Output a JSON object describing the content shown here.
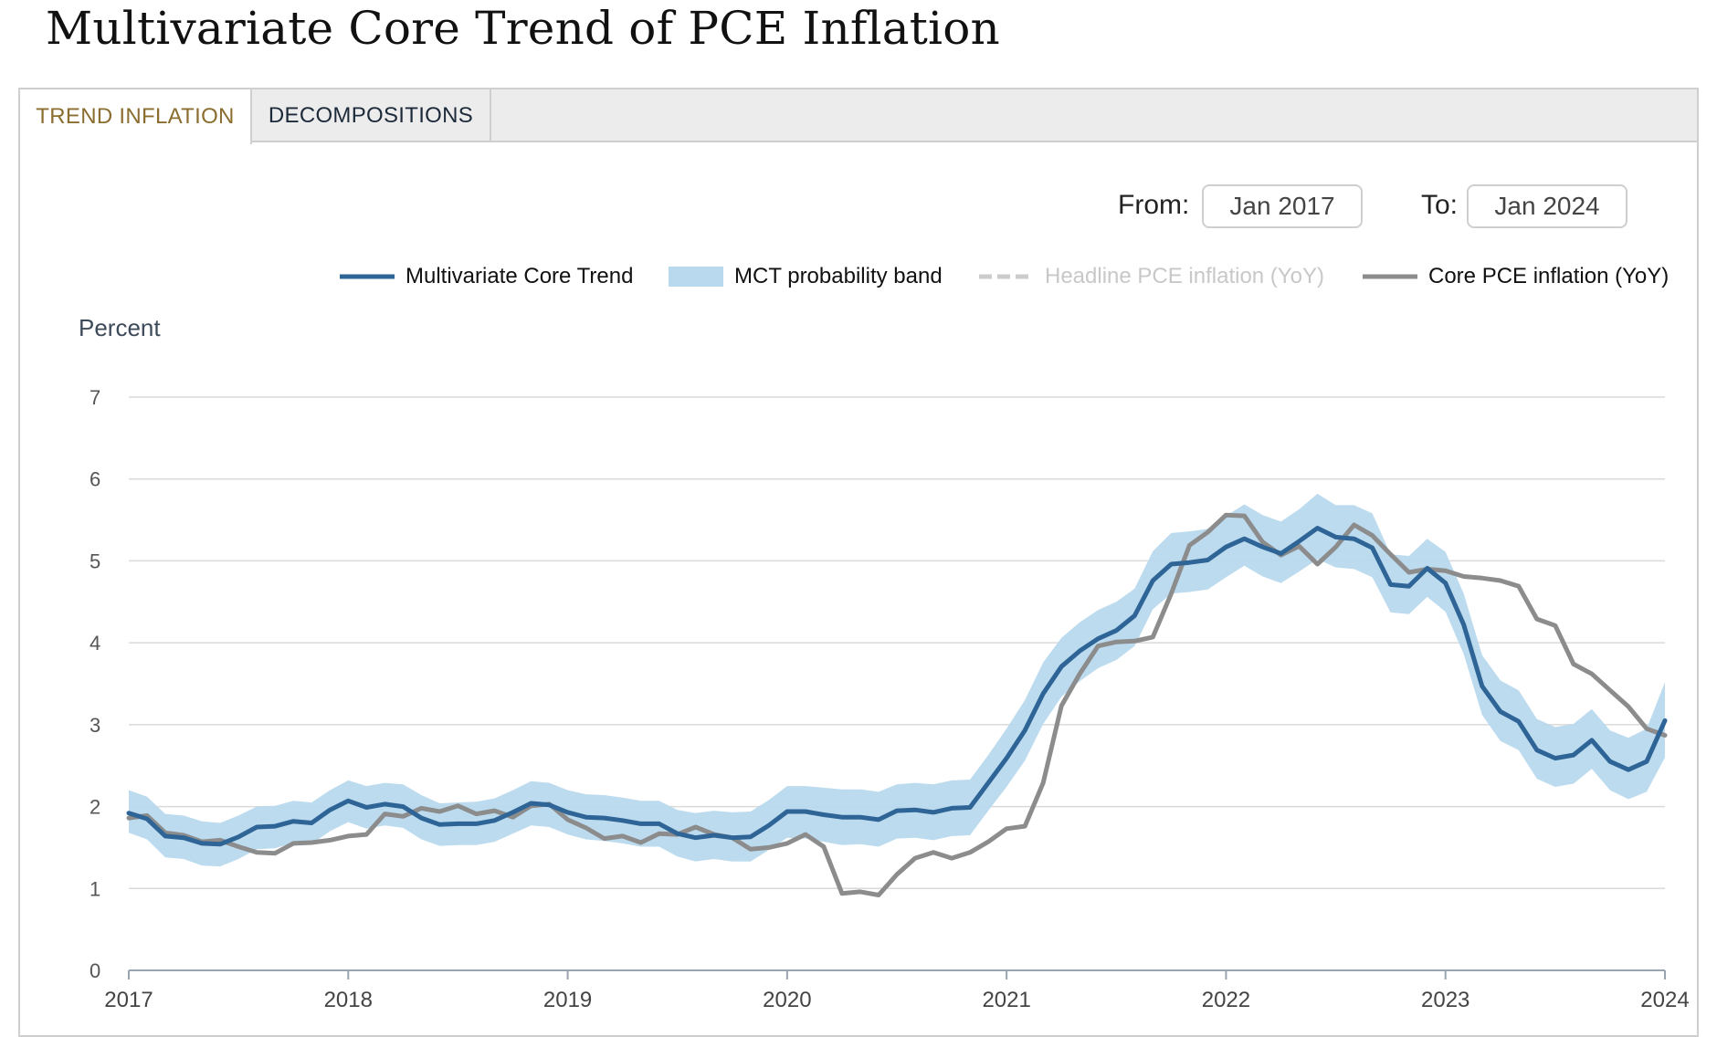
{
  "page": {
    "title": "Multivariate Core Trend of PCE Inflation"
  },
  "tabs": [
    {
      "label": "TREND INFLATION",
      "active": true
    },
    {
      "label": "DECOMPOSITIONS",
      "active": false
    }
  ],
  "range": {
    "from_label": "From:",
    "from_value": "Jan 2017",
    "to_label": "To:",
    "to_value": "Jan 2024"
  },
  "legend": [
    {
      "label": "Multivariate Core Trend",
      "color": "#2e6496",
      "style": "line",
      "enabled": true
    },
    {
      "label": "MCT probability band",
      "color": "#b8d9ee",
      "style": "band",
      "enabled": true
    },
    {
      "label": "Headline PCE inflation (YoY)",
      "color": "#cccccc",
      "style": "dashed",
      "enabled": false
    },
    {
      "label": "Core PCE inflation (YoY)",
      "color": "#8c8c8c",
      "style": "line",
      "enabled": true
    }
  ],
  "chart_data": {
    "type": "line",
    "ylabel": "Percent",
    "ylim": [
      0,
      7
    ],
    "yticks": [
      "0",
      "1",
      "2",
      "3",
      "4",
      "5",
      "6",
      "7"
    ],
    "xlim": [
      2017,
      2024
    ],
    "xticks": [
      "2017",
      "2018",
      "2019",
      "2020",
      "2021",
      "2022",
      "2023",
      "2024"
    ],
    "grid": true,
    "legend_position": "top-right",
    "series": [
      {
        "name": "Multivariate Core Trend",
        "color": "#2e6496",
        "values": [
          1.92,
          1.85,
          1.64,
          1.62,
          1.55,
          1.54,
          1.63,
          1.75,
          1.76,
          1.82,
          1.8,
          1.96,
          2.07,
          1.99,
          2.03,
          2.0,
          1.86,
          1.78,
          1.79,
          1.79,
          1.83,
          1.93,
          2.04,
          2.02,
          1.93,
          1.87,
          1.86,
          1.83,
          1.79,
          1.79,
          1.67,
          1.62,
          1.65,
          1.62,
          1.63,
          1.77,
          1.94,
          1.94,
          1.9,
          1.87,
          1.87,
          1.84,
          1.95,
          1.96,
          1.93,
          1.98,
          1.99,
          2.29,
          2.59,
          2.93,
          3.38,
          3.71,
          3.9,
          4.05,
          4.15,
          4.33,
          4.76,
          4.96,
          4.98,
          5.01,
          5.17,
          5.27,
          5.17,
          5.09,
          5.24,
          5.4,
          5.29,
          5.27,
          5.16,
          4.71,
          4.69,
          4.91,
          4.73,
          4.22,
          3.47,
          3.16,
          3.04,
          2.69,
          2.59,
          2.63,
          2.81,
          2.55,
          2.45,
          2.55,
          3.05
        ]
      },
      {
        "name": "MCT probability band (upper)",
        "color": "#b8d9ee",
        "values": [
          2.2,
          2.12,
          1.91,
          1.89,
          1.82,
          1.8,
          1.89,
          2.0,
          2.01,
          2.07,
          2.05,
          2.2,
          2.32,
          2.25,
          2.29,
          2.27,
          2.14,
          2.04,
          2.05,
          2.06,
          2.1,
          2.2,
          2.31,
          2.29,
          2.2,
          2.15,
          2.14,
          2.11,
          2.07,
          2.07,
          1.96,
          1.92,
          1.95,
          1.93,
          1.94,
          2.08,
          2.25,
          2.25,
          2.23,
          2.21,
          2.21,
          2.18,
          2.27,
          2.29,
          2.27,
          2.32,
          2.33,
          2.63,
          2.95,
          3.3,
          3.76,
          4.06,
          4.25,
          4.4,
          4.5,
          4.66,
          5.12,
          5.34,
          5.36,
          5.39,
          5.55,
          5.69,
          5.56,
          5.48,
          5.63,
          5.82,
          5.68,
          5.68,
          5.58,
          5.08,
          5.06,
          5.27,
          5.11,
          4.6,
          3.85,
          3.54,
          3.42,
          3.07,
          2.97,
          3.01,
          3.19,
          2.93,
          2.84,
          2.95,
          3.52
        ]
      },
      {
        "name": "MCT probability band (lower)",
        "color": "#b8d9ee",
        "values": [
          1.68,
          1.6,
          1.38,
          1.36,
          1.28,
          1.27,
          1.36,
          1.48,
          1.49,
          1.56,
          1.54,
          1.7,
          1.81,
          1.73,
          1.77,
          1.74,
          1.6,
          1.52,
          1.53,
          1.53,
          1.57,
          1.67,
          1.77,
          1.75,
          1.66,
          1.6,
          1.58,
          1.55,
          1.51,
          1.51,
          1.39,
          1.33,
          1.36,
          1.33,
          1.33,
          1.47,
          1.62,
          1.61,
          1.57,
          1.53,
          1.54,
          1.51,
          1.61,
          1.62,
          1.59,
          1.64,
          1.65,
          1.95,
          2.24,
          2.56,
          3.01,
          3.34,
          3.53,
          3.69,
          3.79,
          3.96,
          4.41,
          4.6,
          4.62,
          4.65,
          4.8,
          4.94,
          4.81,
          4.73,
          4.87,
          5.02,
          4.92,
          4.9,
          4.8,
          4.37,
          4.35,
          4.56,
          4.38,
          3.86,
          3.12,
          2.8,
          2.69,
          2.34,
          2.24,
          2.28,
          2.46,
          2.2,
          2.09,
          2.18,
          2.6
        ]
      },
      {
        "name": "Core PCE inflation (YoY)",
        "color": "#8c8c8c",
        "values": [
          1.86,
          1.89,
          1.68,
          1.65,
          1.57,
          1.59,
          1.51,
          1.44,
          1.43,
          1.55,
          1.56,
          1.59,
          1.64,
          1.66,
          1.91,
          1.88,
          1.98,
          1.94,
          2.01,
          1.91,
          1.95,
          1.87,
          2.01,
          2.03,
          1.84,
          1.74,
          1.61,
          1.64,
          1.56,
          1.67,
          1.66,
          1.75,
          1.66,
          1.62,
          1.48,
          1.5,
          1.55,
          1.66,
          1.51,
          0.94,
          0.96,
          0.92,
          1.17,
          1.37,
          1.44,
          1.37,
          1.44,
          1.57,
          1.73,
          1.76,
          2.29,
          3.23,
          3.62,
          3.96,
          4.01,
          4.02,
          4.07,
          4.6,
          5.19,
          5.35,
          5.56,
          5.55,
          5.23,
          5.07,
          5.18,
          4.96,
          5.17,
          5.44,
          5.31,
          5.08,
          4.86,
          4.9,
          4.88,
          4.81,
          4.79,
          4.76,
          4.69,
          4.29,
          4.21,
          3.74,
          3.62,
          3.42,
          3.22,
          2.95,
          2.87
        ]
      }
    ]
  }
}
